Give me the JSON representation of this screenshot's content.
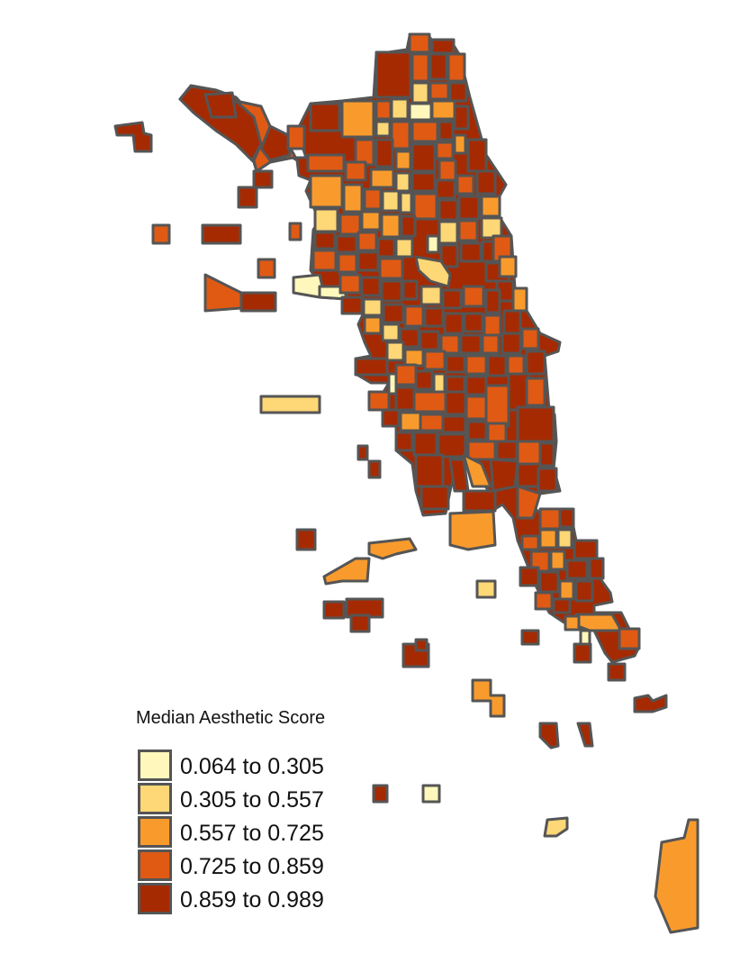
{
  "legend": {
    "title": "Median Aesthetic Score",
    "classes": [
      {
        "label": "0.064 to 0.305",
        "color": "#fff7bc"
      },
      {
        "label": "0.305 to 0.557",
        "color": "#fed776"
      },
      {
        "label": "0.557 to 0.725",
        "color": "#f99b2c"
      },
      {
        "label": "0.725 to 0.859",
        "color": "#e05a14"
      },
      {
        "label": "0.859 to 0.989",
        "color": "#a52a02"
      }
    ]
  },
  "map": {
    "border_color": "#555555"
  }
}
